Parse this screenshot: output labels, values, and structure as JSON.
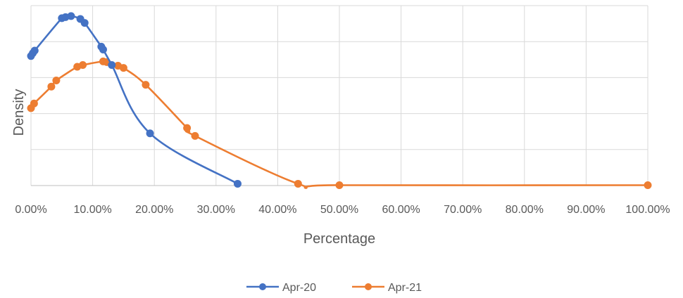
{
  "chart_data": {
    "type": "scatter",
    "title": "",
    "xlabel": "Percentage",
    "ylabel": "Density",
    "xlim": [
      0,
      100
    ],
    "ylim": [
      0,
      5
    ],
    "x_ticks": [
      0,
      10,
      20,
      30,
      40,
      50,
      60,
      70,
      80,
      90,
      100
    ],
    "x_tick_labels": [
      "0.00%",
      "10.00%",
      "20.00%",
      "30.00%",
      "40.00%",
      "50.00%",
      "60.00%",
      "70.00%",
      "80.00%",
      "90.00%",
      "100.00%"
    ],
    "y_gridlines": [
      0,
      1,
      2,
      3,
      4,
      5
    ],
    "grid": true,
    "smoothed_lines": true,
    "markers": "circle",
    "legend_position": "bottom",
    "series": [
      {
        "name": "Apr-20",
        "color": "#4472C4",
        "points": [
          [
            0.0,
            3.6
          ],
          [
            0.3,
            3.68
          ],
          [
            0.6,
            3.75
          ],
          [
            5.0,
            4.65
          ],
          [
            5.6,
            4.68
          ],
          [
            6.5,
            4.71
          ],
          [
            8.0,
            4.63
          ],
          [
            8.7,
            4.52
          ],
          [
            11.4,
            3.86
          ],
          [
            11.7,
            3.78
          ],
          [
            13.1,
            3.35
          ],
          [
            19.3,
            1.45
          ],
          [
            33.5,
            0.05
          ]
        ]
      },
      {
        "name": "Apr-21",
        "color": "#ED7D31",
        "points": [
          [
            0.0,
            2.15
          ],
          [
            0.5,
            2.28
          ],
          [
            3.3,
            2.75
          ],
          [
            4.1,
            2.92
          ],
          [
            7.5,
            3.3
          ],
          [
            8.4,
            3.35
          ],
          [
            11.7,
            3.45
          ],
          [
            12.3,
            3.43
          ],
          [
            14.1,
            3.33
          ],
          [
            15.0,
            3.27
          ],
          [
            18.6,
            2.8
          ],
          [
            25.3,
            1.6
          ],
          [
            26.6,
            1.38
          ],
          [
            43.3,
            0.05
          ],
          [
            50.0,
            0.01
          ],
          [
            100.0,
            0.01
          ]
        ]
      }
    ]
  }
}
